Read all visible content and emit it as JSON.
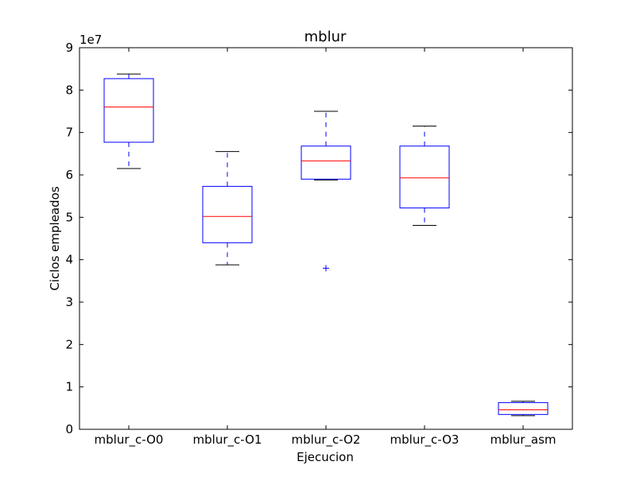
{
  "chart_data": {
    "type": "box",
    "title": "mblur",
    "xlabel": "Ejecucion",
    "ylabel": "Ciclos empleados",
    "y_scale_label": "1e7",
    "ylim": [
      0,
      9
    ],
    "yticks": [
      "0",
      "1",
      "2",
      "3",
      "4",
      "5",
      "6",
      "7",
      "8",
      "9"
    ],
    "grid": false,
    "colors": {
      "box": "#0000ff",
      "median": "#ff0000",
      "whisker_cap": "#000000",
      "outlier": "#0000ff"
    },
    "categories": [
      "mblur_c-O0",
      "mblur_c-O1",
      "mblur_c-O2",
      "mblur_c-O3",
      "mblur_asm"
    ],
    "boxes": [
      {
        "whisker_low": 6.15,
        "q1": 6.77,
        "median": 7.6,
        "q3": 8.27,
        "whisker_high": 8.38,
        "outliers": []
      },
      {
        "whisker_low": 3.88,
        "q1": 4.4,
        "median": 5.02,
        "q3": 5.73,
        "whisker_high": 6.55,
        "outliers": []
      },
      {
        "whisker_low": 5.88,
        "q1": 5.9,
        "median": 6.33,
        "q3": 6.68,
        "whisker_high": 7.5,
        "outliers": [
          3.8
        ]
      },
      {
        "whisker_low": 4.81,
        "q1": 5.22,
        "median": 5.93,
        "q3": 6.68,
        "whisker_high": 7.15,
        "outliers": []
      },
      {
        "whisker_low": 0.32,
        "q1": 0.35,
        "median": 0.46,
        "q3": 0.63,
        "whisker_high": 0.66,
        "outliers": []
      }
    ]
  }
}
